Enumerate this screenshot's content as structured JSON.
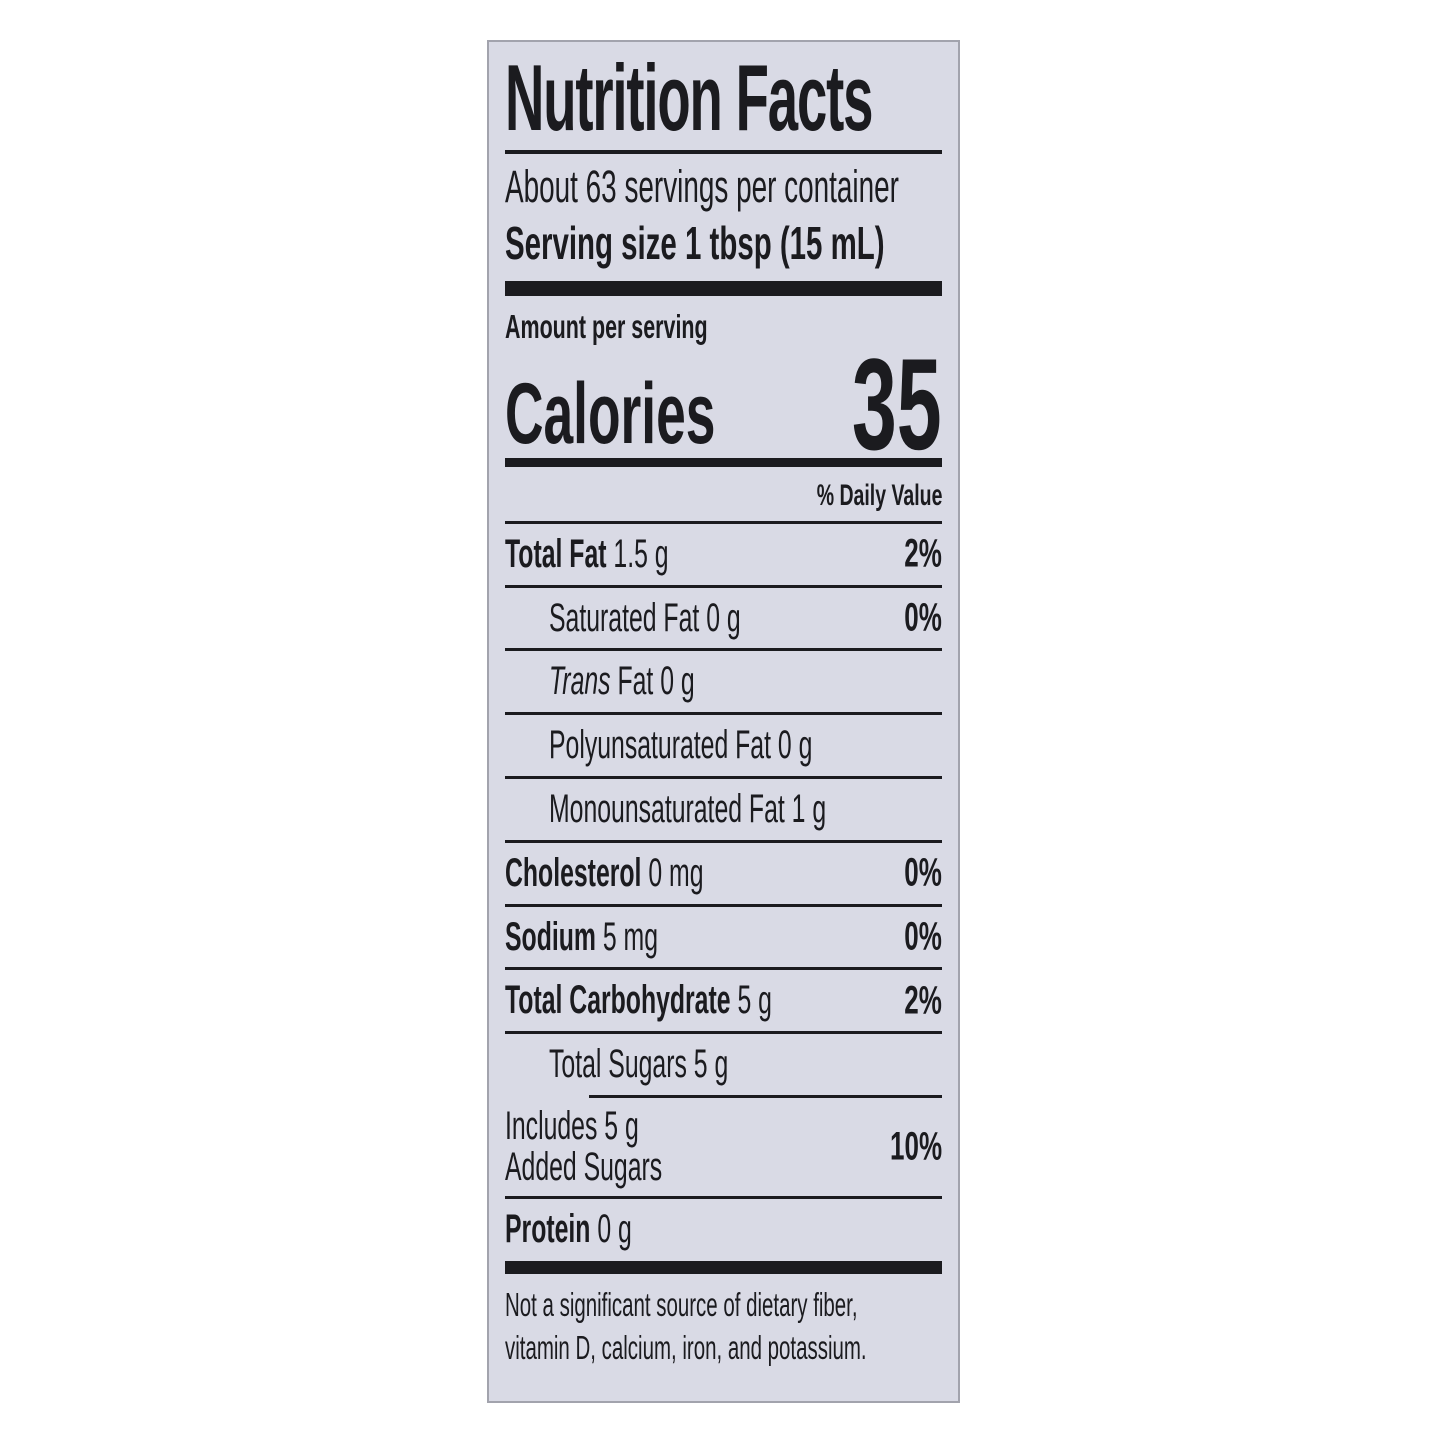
{
  "colors": {
    "label_bg": "#d9dae5",
    "label_border": "#a2a3ad",
    "text": "#1b1b1f",
    "page_bg": "#ffffff"
  },
  "label": {
    "title": "Nutrition Facts",
    "servings_per_container": "About 63 servings per container",
    "serving_size": "Serving size 1 tbsp (15 mL)",
    "amount_per_serving": "Amount per serving",
    "calories_label": "Calories",
    "calories_value": "35",
    "daily_value_header": "% Daily Value",
    "rows": [
      {
        "label": "Total Fat",
        "amount": "1.5 g",
        "dv": "2%"
      },
      {
        "label": "Saturated Fat",
        "amount": "0 g",
        "dv": "0%"
      },
      {
        "label_italic": "Trans",
        "label_rest": " Fat",
        "amount": "0 g",
        "dv": ""
      },
      {
        "label": "Polyunsaturated Fat",
        "amount": "0 g",
        "dv": ""
      },
      {
        "label": "Monounsaturated Fat",
        "amount": "1 g",
        "dv": ""
      },
      {
        "label": "Cholesterol",
        "amount": "0 mg",
        "dv": "0%"
      },
      {
        "label": "Sodium",
        "amount": "5 mg",
        "dv": "0%"
      },
      {
        "label": "Total Carbohydrate",
        "amount": "5 g",
        "dv": "2%"
      },
      {
        "label": "Total Sugars",
        "amount": "5 g",
        "dv": ""
      },
      {
        "line1": "Includes 5 g",
        "line2": "Added Sugars",
        "dv": "10%"
      },
      {
        "label": "Protein",
        "amount": "0 g",
        "dv": ""
      }
    ],
    "footnote_line1": "Not a significant source of dietary fiber,",
    "footnote_line2": "vitamin D, calcium, iron, and potassium."
  }
}
